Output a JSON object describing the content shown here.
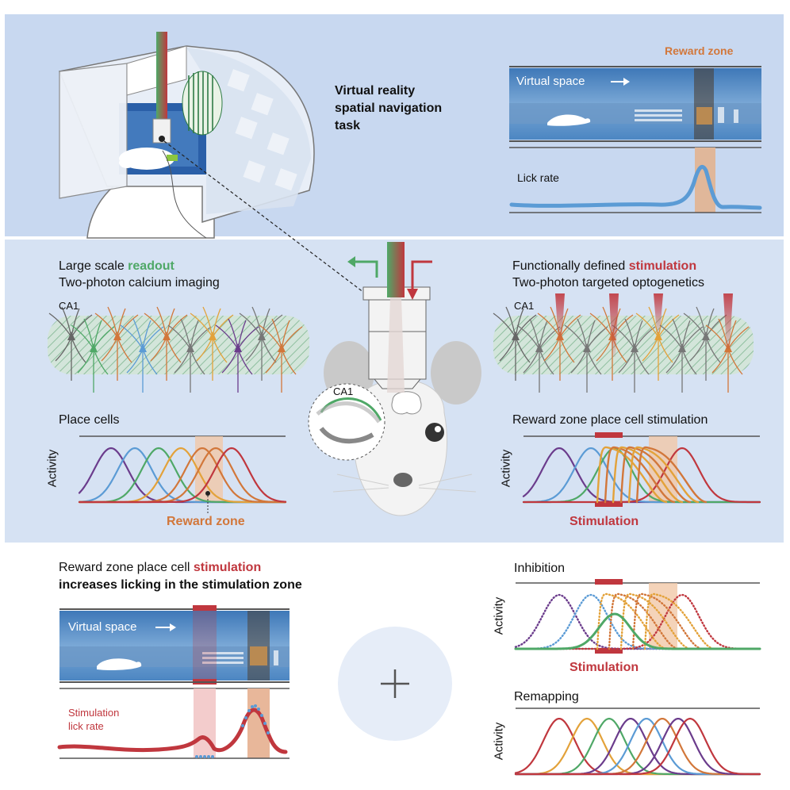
{
  "top": {
    "title_lines": [
      "Virtual reality",
      "spatial navigation",
      "task"
    ],
    "reward_zone": "Reward zone",
    "virtual_space": "Virtual space",
    "lick_rate": "Lick rate"
  },
  "middle": {
    "left": {
      "line1_prefix": "Large scale ",
      "line1_highlight": "readout",
      "line2": "Two-photon calcium imaging",
      "region": "CA1",
      "plot_title": "Place cells",
      "axis": "Activity",
      "annotation": "Reward zone"
    },
    "right": {
      "line1_prefix": "Functionally defined ",
      "line1_highlight": "stimulation",
      "line2": "Two-photon targeted optogenetics",
      "region": "CA1",
      "plot_title": "Reward zone place cell stimulation",
      "axis": "Activity",
      "annotation": "Stimulation"
    },
    "center": {
      "region": "CA1"
    }
  },
  "bottom": {
    "left": {
      "line1_prefix": "Reward zone place cell ",
      "line1_highlight": "stimulation",
      "line2": "increases licking in the stimulation zone",
      "virtual_space": "Virtual space",
      "stim_label_lines": [
        "Stimulation",
        "lick rate"
      ]
    },
    "right": {
      "inhibition_title": "Inhibition",
      "axis": "Activity",
      "stimulation": "Stimulation",
      "remapping_title": "Remapping",
      "axis2": "Activity"
    }
  },
  "colors": {
    "top_panel": "#c8d8f0",
    "mid_panel": "#d6e2f3",
    "orange": "#d2773a",
    "red": "#c0373e",
    "green": "#4fa867",
    "blue_lick": "#5b9bd5",
    "curves": [
      "#6b3c8c",
      "#5b9bd5",
      "#4fa867",
      "#e3a23a",
      "#d2773a",
      "#c0373e"
    ]
  }
}
